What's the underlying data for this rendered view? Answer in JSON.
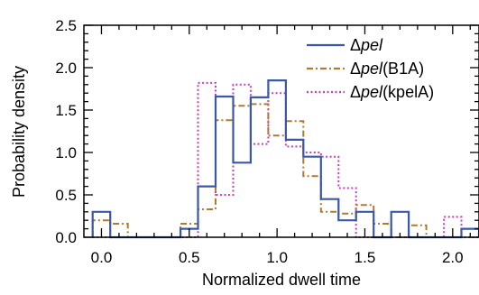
{
  "chart_data": {
    "type": "line",
    "xlabel": "Normalized dwell time",
    "ylabel": "Probability density",
    "xlim": [
      -0.1,
      2.15
    ],
    "ylim": [
      0,
      2.5
    ],
    "xticks": [
      "0.0",
      "0.5",
      "1.0",
      "1.5",
      "2.0"
    ],
    "yticks": [
      "0.0",
      "0.5",
      "1.0",
      "1.5",
      "2.0",
      "2.5"
    ],
    "grid": false,
    "legend_position": "top-right",
    "series": [
      {
        "name": "pel",
        "legend_prefix": "Δ",
        "legend_suffix": "",
        "color": "#3b58a8",
        "style": "solid",
        "bin_edges": [
          -0.05,
          0.05,
          0.15,
          0.25,
          0.35,
          0.45,
          0.55,
          0.65,
          0.75,
          0.85,
          0.95,
          1.05,
          1.15,
          1.25,
          1.35,
          1.45,
          1.55,
          1.65,
          1.75,
          1.85,
          1.95,
          2.05,
          2.15
        ],
        "values": [
          0.3,
          0.0,
          0.0,
          0.0,
          0.0,
          0.1,
          0.6,
          1.66,
          0.88,
          1.65,
          1.85,
          1.15,
          0.95,
          0.45,
          0.2,
          0.3,
          0.0,
          0.3,
          0.0,
          0.0,
          0.0,
          0.1
        ]
      },
      {
        "name": "pel",
        "legend_prefix": "Δ",
        "legend_suffix": "(B1A)",
        "color": "#b07a2f",
        "style": "dashdot",
        "bin_edges": [
          -0.05,
          0.05,
          0.15,
          0.25,
          0.35,
          0.45,
          0.55,
          0.65,
          0.75,
          0.85,
          0.95,
          1.05,
          1.15,
          1.25,
          1.35,
          1.45,
          1.55,
          1.65,
          1.75,
          1.85,
          1.95,
          2.05,
          2.15
        ],
        "values": [
          0.2,
          0.16,
          0.0,
          0.0,
          0.0,
          0.16,
          0.33,
          1.38,
          1.55,
          1.57,
          1.2,
          1.37,
          0.72,
          0.3,
          0.28,
          0.38,
          0.16,
          0.0,
          0.14,
          0.0,
          0.0,
          0.1
        ]
      },
      {
        "name": "pel",
        "legend_prefix": "Δ",
        "legend_suffix": "(kpelA)",
        "color": "#c93fb6",
        "style": "dotted",
        "bin_edges": [
          -0.05,
          0.05,
          0.15,
          0.25,
          0.35,
          0.45,
          0.55,
          0.65,
          0.75,
          0.85,
          0.95,
          1.05,
          1.15,
          1.25,
          1.35,
          1.45,
          1.55,
          1.65,
          1.75,
          1.85,
          1.95,
          2.05,
          2.15
        ],
        "values": [
          0.0,
          0.0,
          0.0,
          0.0,
          0.0,
          0.0,
          1.82,
          0.5,
          1.8,
          1.1,
          1.7,
          1.07,
          1.0,
          0.95,
          0.58,
          0.0,
          0.0,
          0.0,
          0.0,
          0.0,
          0.24,
          0.0
        ]
      }
    ]
  }
}
